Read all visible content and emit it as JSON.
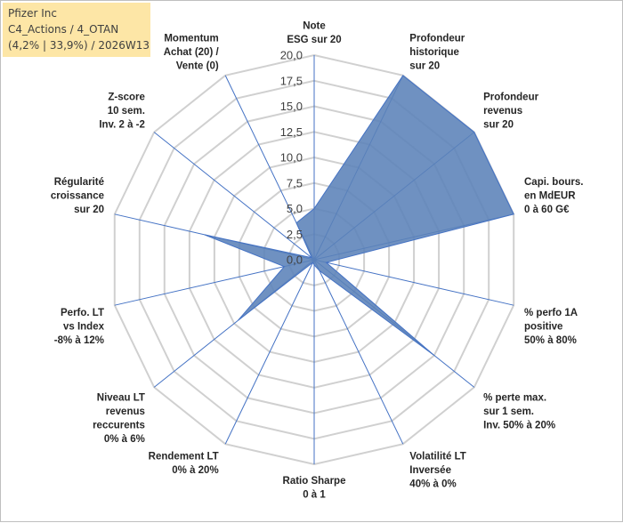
{
  "header": {
    "line1": "Pfizer Inc",
    "line2": "C4_Actions / 4_OTAN",
    "line3": "(4,2% | 33,9%) / 2026W13"
  },
  "chart_data": {
    "type": "radar",
    "rmin": 0,
    "rmax": 20,
    "tick_step": 2.5,
    "ticks": [
      "0,0",
      "2,5",
      "5,0",
      "7,5",
      "10,0",
      "12,5",
      "15,0",
      "17,5",
      "20,0"
    ],
    "axes": [
      {
        "lines": [
          "Note",
          "ESG sur 20"
        ]
      },
      {
        "lines": [
          "Profondeur",
          "historique",
          "sur 20"
        ]
      },
      {
        "lines": [
          "Profondeur",
          "revenus",
          "sur 20"
        ]
      },
      {
        "lines": [
          "Capi. bours.",
          "en MdEUR",
          "0 à 60 G€"
        ]
      },
      {
        "lines": [
          "% perfo 1A",
          "positive",
          "50% à 80%"
        ]
      },
      {
        "lines": [
          "% perte max.",
          "sur 1 sem.",
          "Inv. 50% à 20%"
        ]
      },
      {
        "lines": [
          "Volatilité LT",
          "Inversée",
          "40% à 0%"
        ]
      },
      {
        "lines": [
          "Ratio Sharpe",
          "0 à 1"
        ]
      },
      {
        "lines": [
          "Rendement LT",
          "0% à 20%"
        ]
      },
      {
        "lines": [
          "Niveau LT",
          "revenus",
          "reccurents",
          "0% à 6%"
        ]
      },
      {
        "lines": [
          "Perfo. LT",
          "vs Index",
          "-8% à 12%"
        ]
      },
      {
        "lines": [
          "Régularité",
          "croissance",
          "sur 20"
        ]
      },
      {
        "lines": [
          "Z-score",
          "10 sem.",
          "Inv. 2 à -2"
        ]
      },
      {
        "lines": [
          "Momentum",
          "Achat (20) /",
          "Vente (0)"
        ]
      }
    ],
    "series": [
      {
        "name": "Pfizer Inc",
        "color": "#5b82b8",
        "stroke": "#4472c4",
        "values": [
          5.0,
          20.0,
          20.0,
          20.0,
          1.2,
          15.0,
          1.2,
          0.5,
          0.3,
          9.5,
          3.0,
          11.0,
          0.3,
          4.0
        ]
      }
    ]
  }
}
